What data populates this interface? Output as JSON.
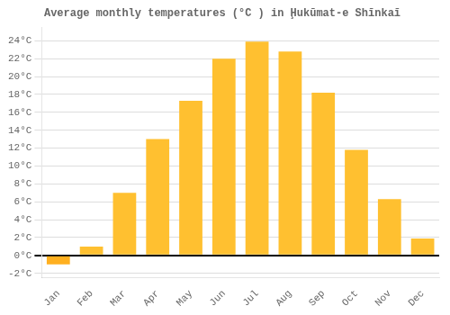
{
  "chart_data": {
    "type": "bar",
    "title": "Average monthly temperatures (°C ) in Ḩukūmat-e Shīnkaī",
    "categories": [
      "Jan",
      "Feb",
      "Mar",
      "Apr",
      "May",
      "Jun",
      "Jul",
      "Aug",
      "Sep",
      "Oct",
      "Nov",
      "Dec"
    ],
    "values": [
      -1.0,
      1.0,
      7.0,
      13.0,
      17.3,
      22.0,
      23.9,
      22.8,
      18.2,
      11.8,
      6.3,
      1.9
    ],
    "colors": [
      "#FFB020",
      "#FFC030",
      "#FFC030",
      "#FFC030",
      "#FFC030",
      "#FFC030",
      "#FFC030",
      "#FFC030",
      "#FFC030",
      "#FFC030",
      "#FFC030",
      "#FFC030"
    ],
    "ylim": [
      -2.5,
      25.5
    ],
    "yticks": [
      {
        "value": -2,
        "label": "-2°C"
      },
      {
        "value": 0,
        "label": "0°C"
      },
      {
        "value": 2,
        "label": "2°C"
      },
      {
        "value": 4,
        "label": "4°C"
      },
      {
        "value": 6,
        "label": "6°C"
      },
      {
        "value": 8,
        "label": "8°C"
      },
      {
        "value": 10,
        "label": "10°C"
      },
      {
        "value": 12,
        "label": "12°C"
      },
      {
        "value": 14,
        "label": "14°C"
      },
      {
        "value": 16,
        "label": "16°C"
      },
      {
        "value": 18,
        "label": "18°C"
      },
      {
        "value": 20,
        "label": "20°C"
      },
      {
        "value": 22,
        "label": "22°C"
      },
      {
        "value": 24,
        "label": "24°C"
      }
    ],
    "grid": true
  }
}
